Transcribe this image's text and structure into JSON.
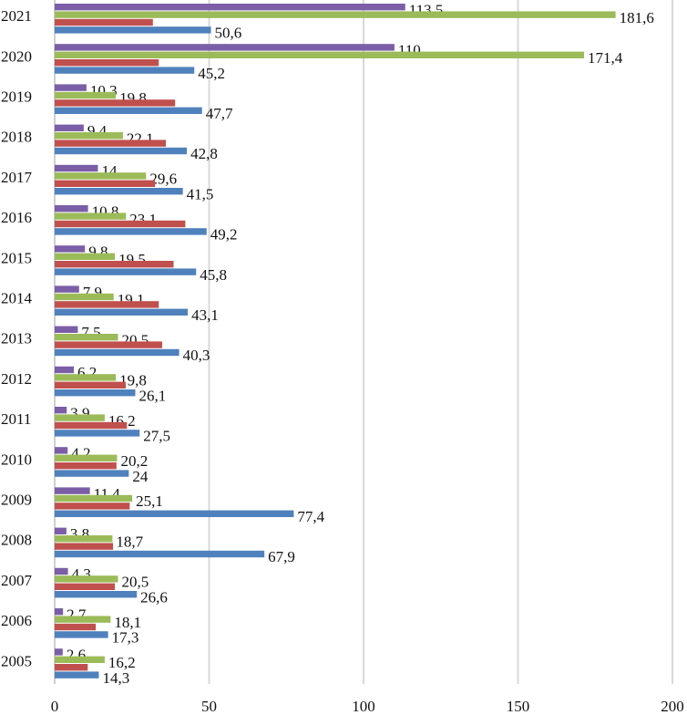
{
  "chart_data": {
    "type": "bar",
    "orientation": "horizontal",
    "title": "",
    "xlabel": "",
    "ylabel": "",
    "xlim": [
      0,
      200
    ],
    "xticks": [
      0,
      50,
      100,
      150,
      200
    ],
    "grid": true,
    "legend": "none",
    "categories": [
      "2021",
      "2020",
      "2019",
      "2018",
      "2017",
      "2016",
      "2015",
      "2014",
      "2013",
      "2012",
      "2011",
      "2010",
      "2009",
      "2008",
      "2007",
      "2006",
      "2005"
    ],
    "series": [
      {
        "color": "#7b5ea7",
        "labeled": true,
        "values": [
          113.5,
          110,
          10.3,
          9.4,
          14,
          10.8,
          9.8,
          7.9,
          7.5,
          6.2,
          3.9,
          4.2,
          11.4,
          3.8,
          4.3,
          2.7,
          2.6
        ],
        "labels": [
          "113,5",
          "110",
          "10,3",
          "9,4",
          "14",
          "10,8",
          "9,8",
          "7,9",
          "7,5",
          "6,2",
          "3,9",
          "4,2",
          "11,4",
          "3,8",
          "4,3",
          "2,7",
          "2,6"
        ]
      },
      {
        "color": "#9bbb59",
        "labeled": true,
        "values": [
          181.6,
          171.4,
          19.8,
          22.1,
          29.6,
          23.1,
          19.5,
          19.1,
          20.5,
          19.8,
          16.2,
          20.2,
          25.1,
          18.7,
          20.5,
          18.1,
          16.2
        ],
        "labels": [
          "181,6",
          "171,4",
          "19,8",
          "22,1",
          "29,6",
          "23,1",
          "19,5",
          "19,1",
          "20,5",
          "19,8",
          "16,2",
          "20,2",
          "25,1",
          "18,7",
          "20,5",
          "18,1",
          "16,2"
        ]
      },
      {
        "color": "#c0504d",
        "labeled": false,
        "values": [
          31.8,
          33.7,
          39,
          36,
          32.5,
          42.3,
          38.5,
          33.7,
          34.8,
          23,
          23.4,
          20,
          24.3,
          18.9,
          19.5,
          13.3,
          10.7
        ]
      },
      {
        "color": "#4f81bd",
        "labeled": true,
        "values": [
          50.6,
          45.2,
          47.7,
          42.8,
          41.5,
          49.2,
          45.8,
          43.1,
          40.3,
          26.1,
          27.5,
          24,
          77.4,
          67.9,
          26.6,
          17.3,
          14.3
        ],
        "labels": [
          "50,6",
          "45,2",
          "47,7",
          "42,8",
          "41,5",
          "49,2",
          "45,8",
          "43,1",
          "40,3",
          "26,1",
          "27,5",
          "24",
          "77,4",
          "67,9",
          "26,6",
          "17,3",
          "14,3"
        ]
      }
    ]
  }
}
